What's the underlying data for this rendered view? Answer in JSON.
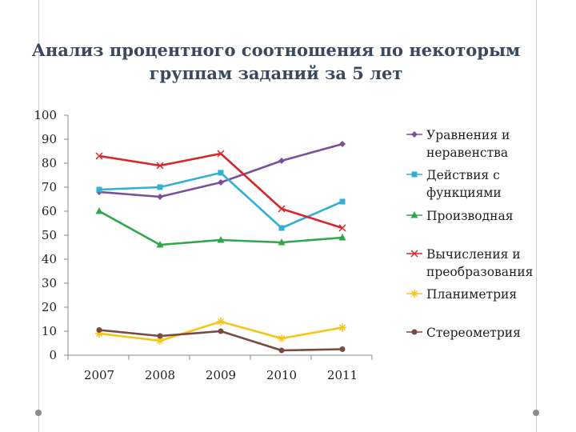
{
  "title": {
    "line1": "Анализ процентного соотношения по некоторым",
    "line2": "группам заданий за 5 лет"
  },
  "chart_data": {
    "type": "line",
    "categories": [
      "2007",
      "2008",
      "2009",
      "2010",
      "2011"
    ],
    "ylim": [
      0,
      100
    ],
    "yticks": [
      0,
      10,
      20,
      30,
      40,
      50,
      60,
      70,
      80,
      90,
      100
    ],
    "grid": false,
    "legend_position": "right",
    "series": [
      {
        "name": "Уравнения и неравенства",
        "label_lines": [
          "Уравнения и",
          "неравенства"
        ],
        "values": [
          68,
          66,
          72,
          81,
          88
        ],
        "color": "#7b4f9e",
        "marker": "diamond"
      },
      {
        "name": "Действия с функциями",
        "label_lines": [
          "Действия с",
          "функциями"
        ],
        "values": [
          69,
          70,
          76,
          53,
          64
        ],
        "color": "#31b0d6",
        "marker": "square"
      },
      {
        "name": "Производная",
        "label_lines": [
          "Производная"
        ],
        "values": [
          60,
          46,
          48,
          47,
          49
        ],
        "color": "#2ea84b",
        "marker": "triangle"
      },
      {
        "name": "Вычисления и преобразования",
        "label_lines": [
          "Вычисления и",
          "преобразования"
        ],
        "values": [
          83,
          79,
          84,
          61,
          53
        ],
        "color": "#d8262b",
        "marker": "x"
      },
      {
        "name": "Планиметрия",
        "label_lines": [
          "Планиметрия"
        ],
        "values": [
          9,
          6,
          14,
          7,
          11.5
        ],
        "color": "#f5c518",
        "marker": "star"
      },
      {
        "name": "Стереометрия",
        "label_lines": [
          "Стереометрия"
        ],
        "values": [
          10.5,
          8,
          10,
          2,
          2.5
        ],
        "color": "#7a4a40",
        "marker": "circle"
      }
    ]
  }
}
